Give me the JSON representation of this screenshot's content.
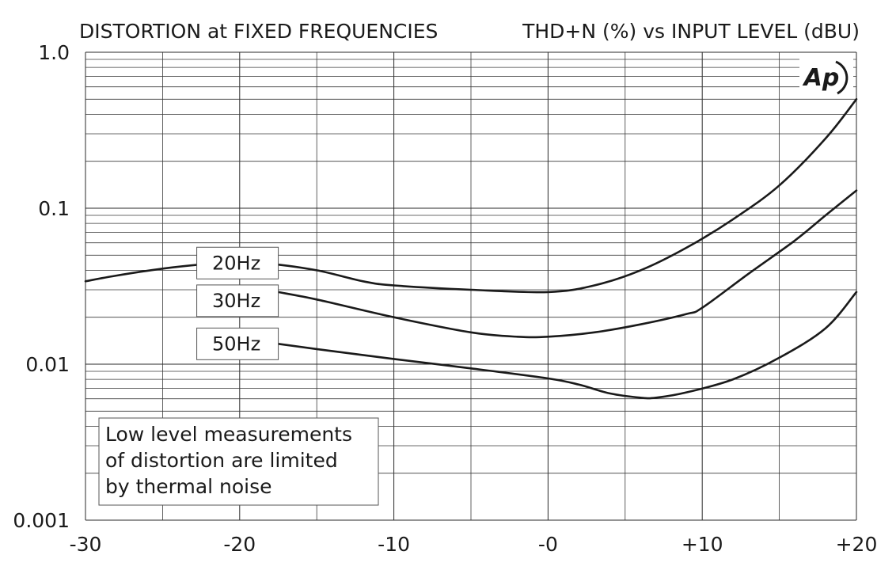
{
  "header": {
    "left_title": "DISTORTION at FIXED FREQUENCIES",
    "right_title": "THD+N (%) vs INPUT LEVEL (dBU)"
  },
  "logo": {
    "text": "Ap",
    "icon": "audio-precision-logo"
  },
  "chart_data": {
    "type": "line",
    "title": "DISTORTION at FIXED FREQUENCIES",
    "subtitle": "THD+N (%) vs INPUT LEVEL (dBU)",
    "xlabel": "",
    "ylabel": "",
    "xlim": [
      -30,
      20
    ],
    "ylim": [
      0.001,
      1.0
    ],
    "y_scale": "log",
    "grid": true,
    "x_ticks": [
      {
        "value": -30,
        "label": "-30"
      },
      {
        "value": -20,
        "label": "-20"
      },
      {
        "value": -10,
        "label": "-10"
      },
      {
        "value": 0,
        "label": "-0"
      },
      {
        "value": 10,
        "label": "+10"
      },
      {
        "value": 20,
        "label": "+20"
      }
    ],
    "y_ticks": [
      {
        "value": 1.0,
        "label": "1.0"
      },
      {
        "value": 0.1,
        "label": "0.1"
      },
      {
        "value": 0.01,
        "label": "0.01"
      },
      {
        "value": 0.001,
        "label": "0.001"
      }
    ],
    "series": [
      {
        "name": "20Hz",
        "x": [
          -30,
          -28,
          -25,
          -22,
          -20,
          -18,
          -15,
          -12,
          -10,
          -5,
          0,
          3,
          6,
          9,
          12,
          15,
          18,
          20
        ],
        "y": [
          0.034,
          0.037,
          0.041,
          0.044,
          0.045,
          0.044,
          0.04,
          0.034,
          0.032,
          0.03,
          0.029,
          0.032,
          0.04,
          0.056,
          0.085,
          0.14,
          0.28,
          0.5
        ]
      },
      {
        "name": "30Hz",
        "x": [
          -17.5,
          -15,
          -10,
          -5,
          -2,
          0,
          3,
          6,
          9,
          10,
          13,
          16,
          18,
          20
        ],
        "y": [
          0.029,
          0.026,
          0.02,
          0.016,
          0.015,
          0.015,
          0.016,
          0.018,
          0.021,
          0.023,
          0.038,
          0.062,
          0.09,
          0.13
        ]
      },
      {
        "name": "50Hz",
        "x": [
          -17.5,
          -15,
          -10,
          -5,
          0,
          2,
          4,
          6,
          7,
          9,
          12,
          15,
          18,
          20
        ],
        "y": [
          0.0135,
          0.0125,
          0.0108,
          0.0094,
          0.0081,
          0.0074,
          0.0065,
          0.0061,
          0.0061,
          0.0066,
          0.008,
          0.011,
          0.017,
          0.029
        ]
      }
    ],
    "annotation": {
      "lines": [
        "Low level measurements",
        "of distortion are limited",
        "by thermal noise"
      ]
    }
  }
}
